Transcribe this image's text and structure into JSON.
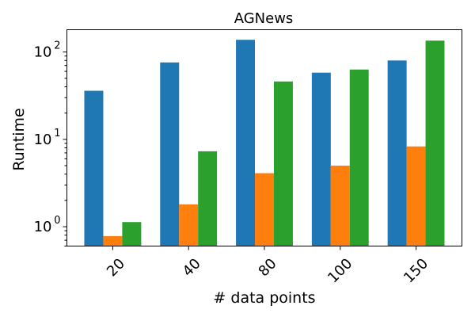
{
  "chart_data": {
    "type": "bar",
    "title": "AGNews",
    "xlabel": "# data points",
    "ylabel": "Runtime",
    "categories": [
      "20",
      "40",
      "80",
      "100",
      "150"
    ],
    "y_scale": "log",
    "ylim": [
      0.6,
      180
    ],
    "y_ticks": [
      {
        "value": 1,
        "base": "10",
        "exp": "0"
      },
      {
        "value": 10,
        "base": "10",
        "exp": "1"
      },
      {
        "value": 100,
        "base": "10",
        "exp": "2"
      }
    ],
    "series": [
      {
        "color": "#1f77b4",
        "values": [
          36,
          76,
          138,
          58,
          80
        ]
      },
      {
        "color": "#ff7f0e",
        "values": [
          0.78,
          1.8,
          4.1,
          5.0,
          8.3
        ]
      },
      {
        "color": "#2ca02c",
        "values": [
          1.13,
          7.3,
          46,
          63,
          135
        ]
      }
    ],
    "grid": false,
    "legend": "none",
    "x_tick_rotation": 45
  }
}
